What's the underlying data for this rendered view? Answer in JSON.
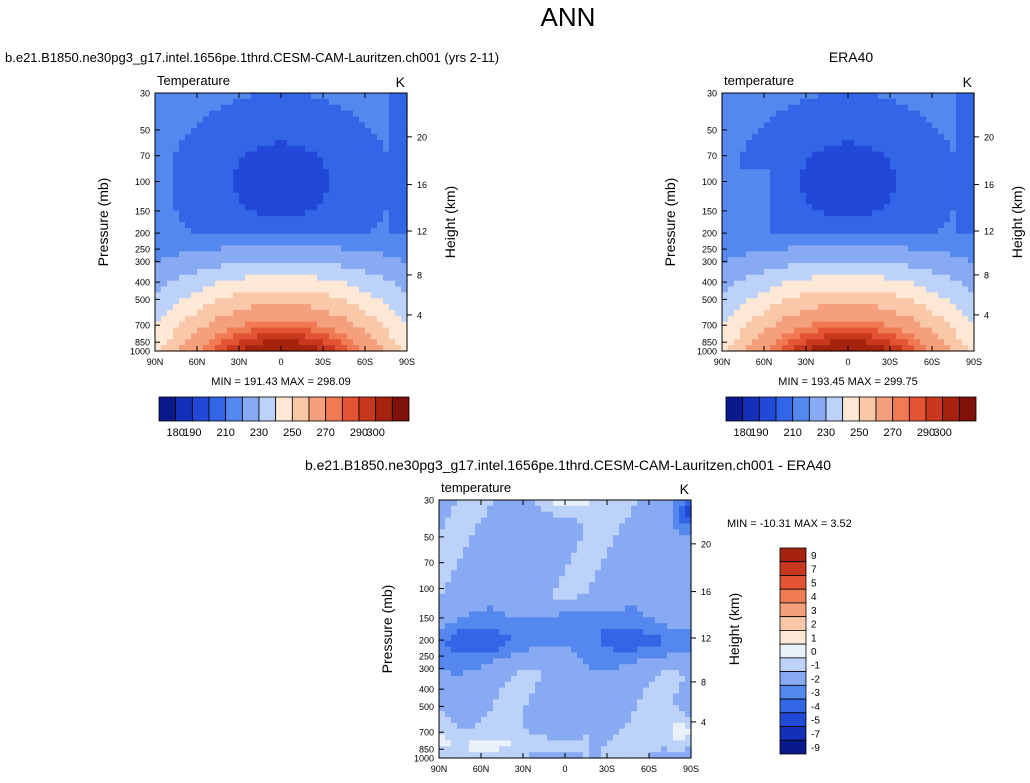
{
  "page": {
    "title": "ANN"
  },
  "colors": {
    "levels_abs": [
      "#0a1a8a",
      "#1530b8",
      "#2248d8",
      "#3366e6",
      "#5588ee",
      "#88aaf2",
      "#bdd2f8",
      "#fde8d6",
      "#f8c8a8",
      "#f4a07c",
      "#ef7a54",
      "#e35434",
      "#c8381f",
      "#a5230f",
      "#7e1208"
    ],
    "levels_diff": [
      "#0a1a8a",
      "#1530b8",
      "#2248d8",
      "#3366e6",
      "#5588ee",
      "#88aaf2",
      "#bdd2f8",
      "#eaf1fb",
      "#fde8d6",
      "#f8c8a8",
      "#f4a07c",
      "#ef7a54",
      "#e35434",
      "#c8381f",
      "#a5230f"
    ]
  },
  "chart_data": [
    {
      "type": "heatmap",
      "panel": "model",
      "title": "b.e21.B1850.ne30pg3_g17.intel.1656pe.1thrd.CESM-CAM-Lauritzen.ch001 (yrs 2-11)",
      "left_string": "Temperature",
      "right_string": "K",
      "xlabel": "",
      "ylabel": "Pressure (mb)",
      "ylabel_right": "Height (km)",
      "x_ticks": [
        "90N",
        "60N",
        "30N",
        "0",
        "30S",
        "60S",
        "90S"
      ],
      "y_ticks": [
        "30",
        "50",
        "70",
        "100",
        "150",
        "200",
        "250",
        "300",
        "400",
        "500",
        "700",
        "850",
        "1000"
      ],
      "y_right_ticks": [
        "20",
        "16",
        "12",
        "8",
        "4"
      ],
      "stats": "MIN = 191.43   MAX = 298.09",
      "colorbar_labels": [
        "180",
        "190",
        "210",
        "230",
        "250",
        "270",
        "290",
        "300"
      ],
      "ylim": [
        1000,
        30
      ],
      "xlim": [
        "90N",
        "90S"
      ]
    },
    {
      "type": "heatmap",
      "panel": "obs",
      "title": "ERA40",
      "left_string": "temperature",
      "right_string": "K",
      "xlabel": "",
      "ylabel": "Pressure (mb)",
      "ylabel_right": "Height (km)",
      "x_ticks": [
        "90N",
        "60N",
        "30N",
        "0",
        "30S",
        "60S",
        "90S"
      ],
      "y_ticks": [
        "30",
        "50",
        "70",
        "100",
        "150",
        "200",
        "250",
        "300",
        "400",
        "500",
        "700",
        "850",
        "1000"
      ],
      "y_right_ticks": [
        "20",
        "16",
        "12",
        "8",
        "4"
      ],
      "stats": "MIN = 193.45   MAX = 299.75",
      "colorbar_labels": [
        "180",
        "190",
        "210",
        "230",
        "250",
        "270",
        "290",
        "300"
      ],
      "ylim": [
        1000,
        30
      ],
      "xlim": [
        "90N",
        "90S"
      ]
    },
    {
      "type": "heatmap",
      "panel": "difference",
      "title": "b.e21.B1850.ne30pg3_g17.intel.1656pe.1thrd.CESM-CAM-Lauritzen.ch001 - ERA40",
      "left_string": "temperature",
      "right_string": "K",
      "xlabel": "",
      "ylabel": "Pressure (mb)",
      "ylabel_right": "Height (km)",
      "x_ticks": [
        "90N",
        "60N",
        "30N",
        "0",
        "30S",
        "60S",
        "90S"
      ],
      "y_ticks": [
        "30",
        "50",
        "70",
        "100",
        "150",
        "200",
        "250",
        "300",
        "400",
        "500",
        "700",
        "850",
        "1000"
      ],
      "y_right_ticks": [
        "20",
        "16",
        "12",
        "8",
        "4"
      ],
      "stats": "MIN = -10.31   MAX =   3.52",
      "colorbar_labels": [
        "9",
        "7",
        "5",
        "4",
        "3",
        "2",
        "1",
        "0",
        "-1",
        "-2",
        "-3",
        "-4",
        "-5",
        "-7",
        "-9"
      ],
      "ylim": [
        1000,
        30
      ],
      "xlim": [
        "90N",
        "90S"
      ]
    }
  ]
}
